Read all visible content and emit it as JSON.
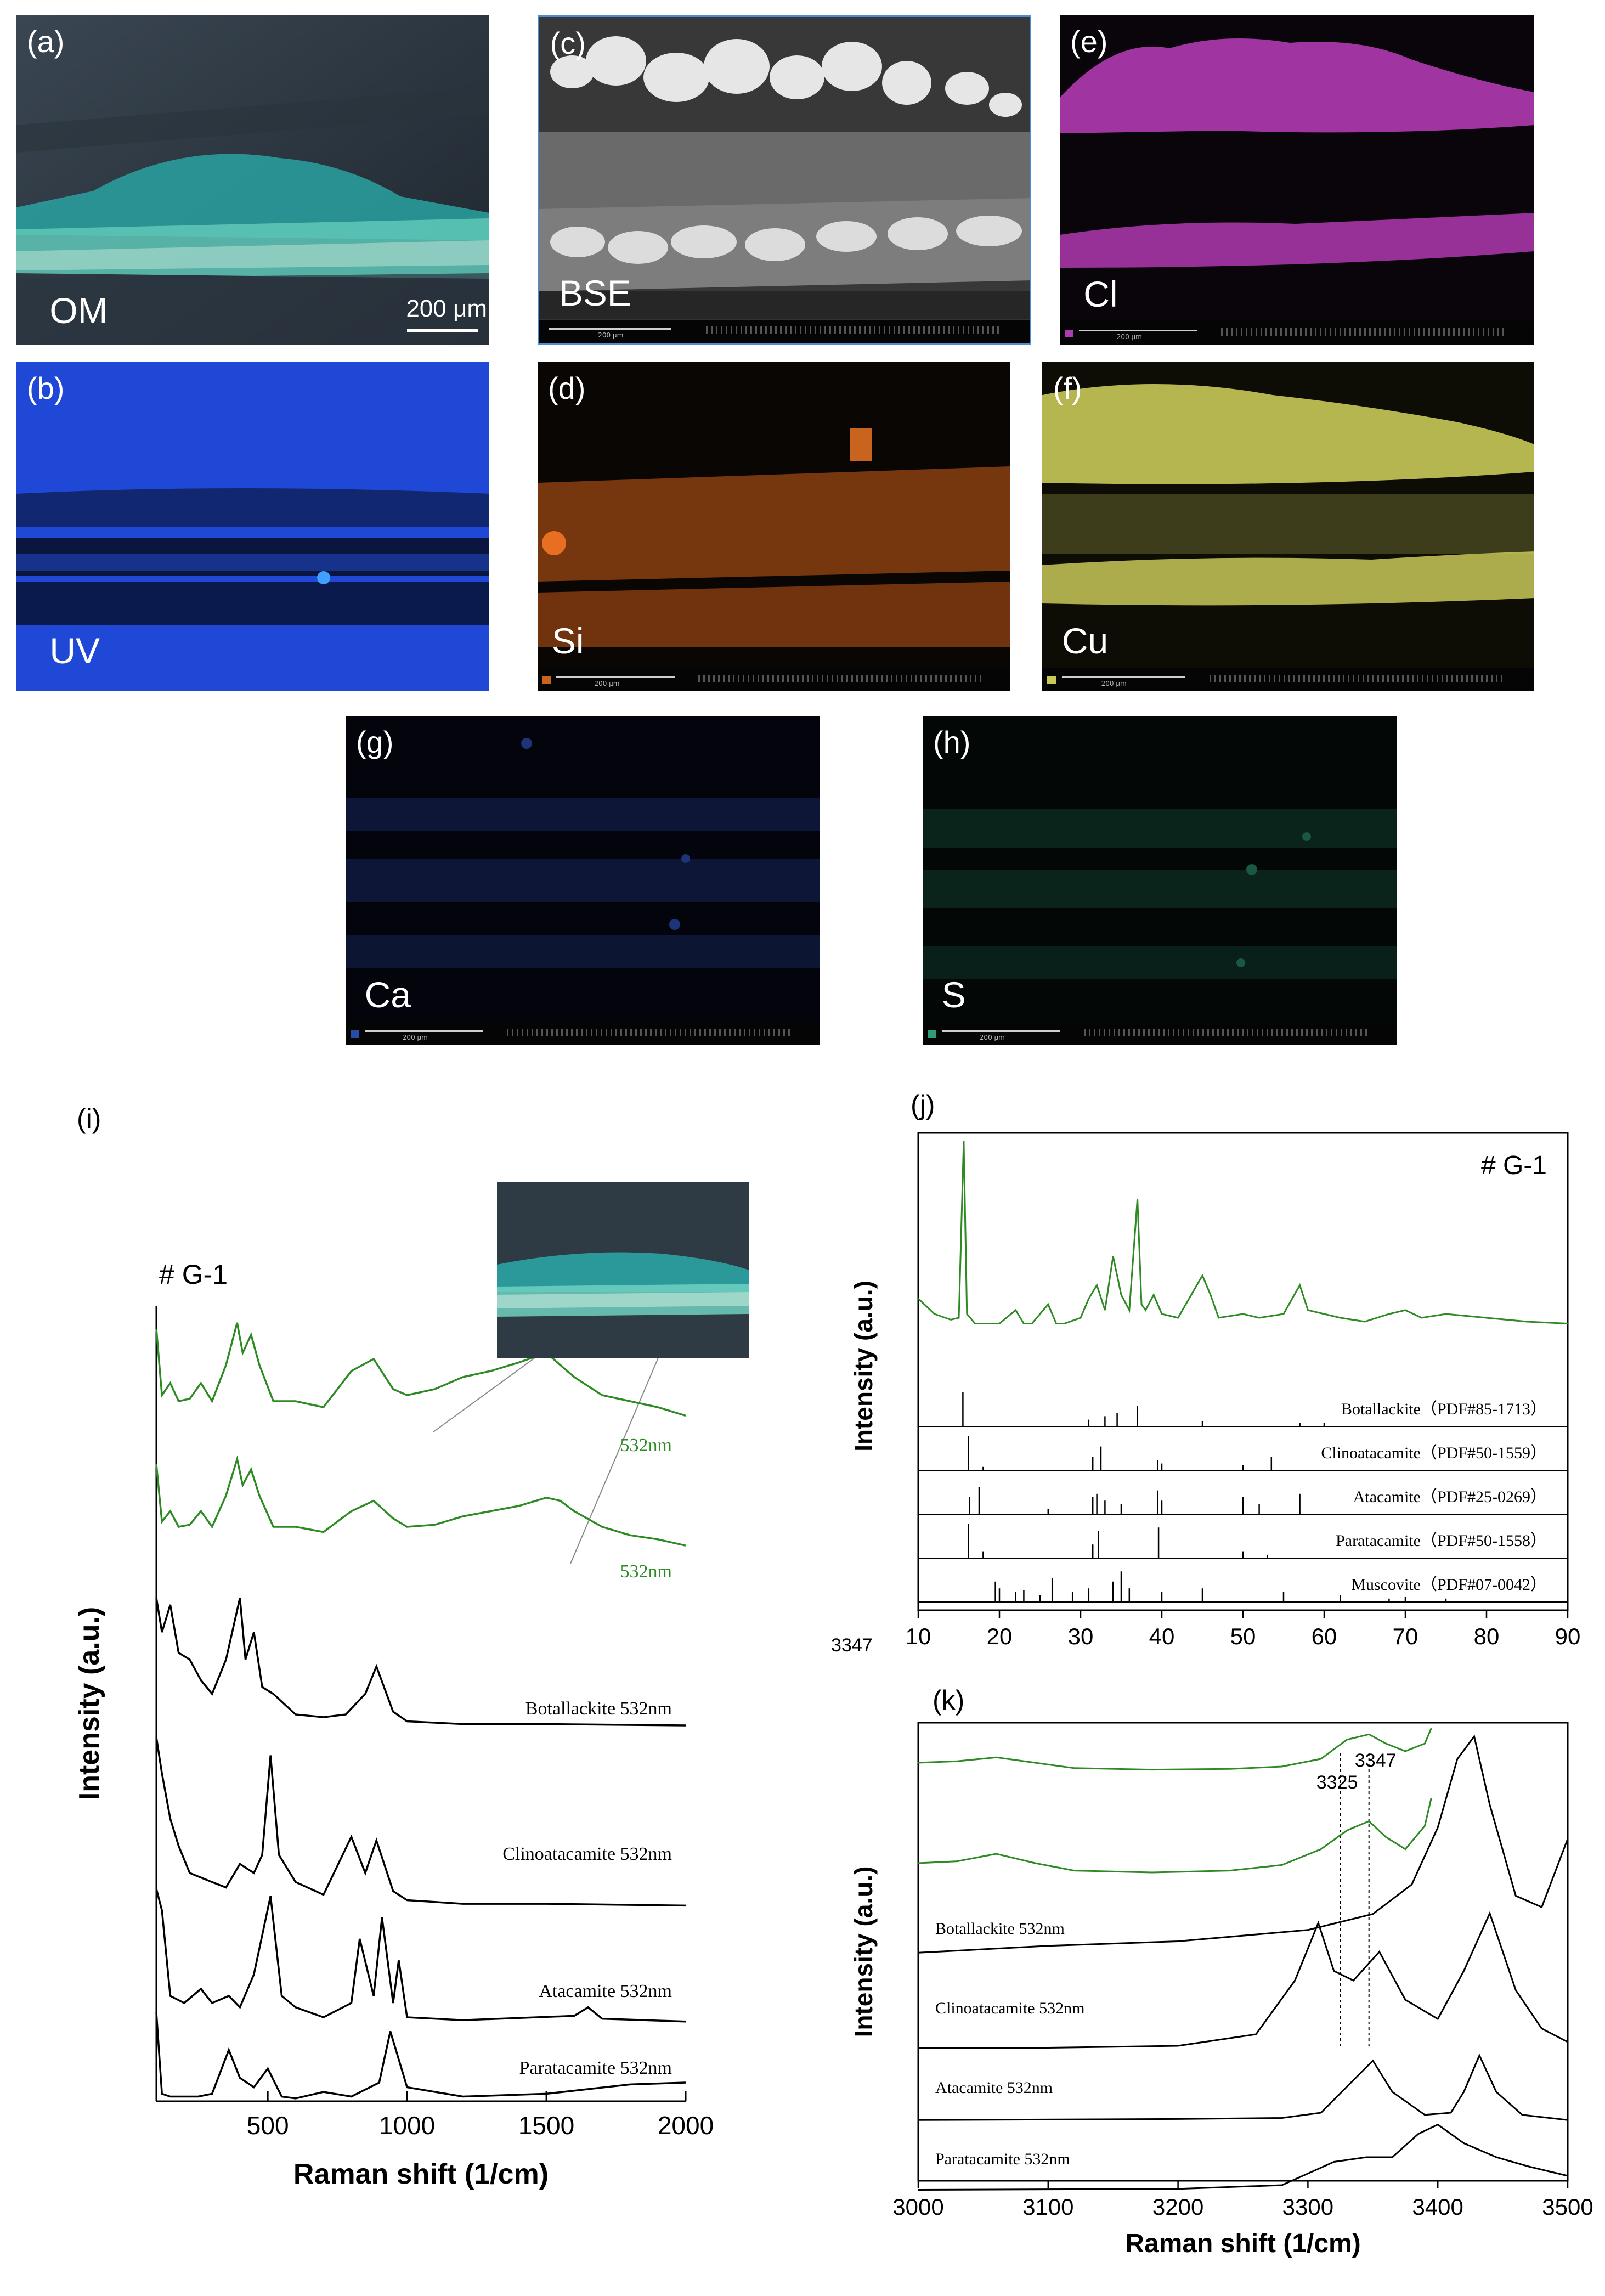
{
  "panels": {
    "a": {
      "label": "(a)",
      "text": "OM",
      "scale": "200 μm"
    },
    "b": {
      "label": "(b)",
      "text": "UV"
    },
    "c": {
      "label": "(c)",
      "text": "BSE"
    },
    "d": {
      "label": "(d)",
      "text": "Si"
    },
    "e": {
      "label": "(e)",
      "text": "Cl"
    },
    "f": {
      "label": "(f)",
      "text": "Cu"
    },
    "g": {
      "label": "(g)",
      "text": "Ca"
    },
    "h": {
      "label": "(h)",
      "text": "S"
    }
  },
  "sem_scale": "200 μm",
  "colors": {
    "Cl": "#b03ab0",
    "Cu": "#c9c95a",
    "Si": "#c9641e",
    "Ca": "#2a4aa8",
    "S": "#2f9c7c",
    "UV": "#1f48d6",
    "spectrum_green": "#2e8b24"
  },
  "stray_text": "3347",
  "chart_data": [
    {
      "panel": "(i)",
      "type": "line",
      "sample_label": "# G-1",
      "xlabel": "Raman shift (1/cm)",
      "ylabel": "Intensity (a.u.)",
      "xlim": [
        100,
        2000
      ],
      "xticks": [
        500,
        1000,
        1500,
        2000
      ],
      "series": [
        {
          "name": "532nm",
          "color": "#2e8b24",
          "x": [
            100,
            120,
            150,
            180,
            220,
            260,
            300,
            350,
            390,
            410,
            440,
            470,
            520,
            600,
            700,
            800,
            880,
            950,
            1000,
            1100,
            1200,
            1300,
            1400,
            1500,
            1550,
            1600,
            1700,
            1800,
            1900,
            2000
          ],
          "y": [
            0.9,
            0.35,
            0.45,
            0.3,
            0.32,
            0.45,
            0.3,
            0.6,
            0.95,
            0.7,
            0.85,
            0.6,
            0.3,
            0.3,
            0.25,
            0.55,
            0.65,
            0.4,
            0.35,
            0.4,
            0.5,
            0.55,
            0.62,
            0.7,
            0.6,
            0.5,
            0.35,
            0.3,
            0.25,
            0.18
          ]
        },
        {
          "name": "532nm",
          "color": "#2e8b24",
          "x": [
            100,
            120,
            150,
            180,
            220,
            260,
            300,
            350,
            390,
            410,
            440,
            470,
            520,
            600,
            700,
            800,
            880,
            950,
            1000,
            1100,
            1200,
            1300,
            1400,
            1500,
            1550,
            1600,
            1700,
            1800,
            1900,
            2000
          ],
          "y": [
            0.9,
            0.35,
            0.45,
            0.3,
            0.32,
            0.45,
            0.3,
            0.6,
            0.95,
            0.7,
            0.85,
            0.6,
            0.3,
            0.3,
            0.25,
            0.45,
            0.55,
            0.38,
            0.3,
            0.32,
            0.4,
            0.45,
            0.5,
            0.58,
            0.55,
            0.45,
            0.3,
            0.22,
            0.18,
            0.12
          ]
        },
        {
          "name": "Botallackite 532nm",
          "color": "#000000",
          "x": [
            100,
            120,
            150,
            180,
            220,
            260,
            300,
            350,
            400,
            420,
            450,
            480,
            520,
            600,
            700,
            780,
            850,
            890,
            950,
            1000,
            1200,
            1500,
            2000
          ],
          "y": [
            0.95,
            0.7,
            0.9,
            0.55,
            0.5,
            0.35,
            0.25,
            0.5,
            0.95,
            0.5,
            0.7,
            0.3,
            0.25,
            0.1,
            0.08,
            0.1,
            0.25,
            0.45,
            0.12,
            0.05,
            0.03,
            0.03,
            0.02
          ]
        },
        {
          "name": "Clinoatacamite 532nm",
          "color": "#000000",
          "x": [
            100,
            120,
            150,
            180,
            220,
            300,
            350,
            400,
            450,
            480,
            510,
            540,
            600,
            700,
            800,
            850,
            890,
            950,
            1000,
            1200,
            1500,
            2000
          ],
          "y": [
            0.95,
            0.75,
            0.5,
            0.35,
            0.2,
            0.15,
            0.12,
            0.25,
            0.2,
            0.3,
            0.85,
            0.3,
            0.15,
            0.08,
            0.4,
            0.2,
            0.38,
            0.1,
            0.05,
            0.03,
            0.03,
            0.02
          ]
        },
        {
          "name": "Atacamite 532nm",
          "color": "#000000",
          "x": [
            100,
            120,
            150,
            200,
            260,
            300,
            360,
            400,
            450,
            510,
            550,
            600,
            700,
            800,
            830,
            880,
            910,
            950,
            970,
            1000,
            1200,
            1600,
            1650,
            1700,
            2000
          ],
          "y": [
            0.95,
            0.8,
            0.2,
            0.15,
            0.25,
            0.15,
            0.2,
            0.12,
            0.35,
            0.9,
            0.2,
            0.12,
            0.05,
            0.15,
            0.6,
            0.2,
            0.75,
            0.15,
            0.45,
            0.05,
            0.03,
            0.06,
            0.12,
            0.04,
            0.02
          ]
        },
        {
          "name": "Paratacamite 532nm",
          "color": "#000000",
          "x": [
            100,
            120,
            150,
            250,
            300,
            360,
            400,
            450,
            500,
            550,
            600,
            700,
            800,
            900,
            940,
            1000,
            1200,
            1500,
            1800,
            2000
          ],
          "y": [
            0.95,
            0.08,
            0.05,
            0.05,
            0.08,
            0.55,
            0.25,
            0.15,
            0.35,
            0.05,
            0.03,
            0.1,
            0.05,
            0.2,
            0.75,
            0.15,
            0.05,
            0.08,
            0.18,
            0.2
          ]
        }
      ]
    },
    {
      "panel": "(j)",
      "type": "line",
      "sample_label": "# G-1",
      "ylabel": "Intensity (a.u.)",
      "xlim": [
        10,
        90
      ],
      "xticks": [
        10,
        20,
        30,
        40,
        50,
        60,
        70,
        80,
        90
      ],
      "pattern": {
        "color": "#2e8b24",
        "x": [
          10,
          12,
          14,
          15,
          15.6,
          16,
          17,
          20,
          22,
          23,
          24,
          26,
          27,
          28,
          30,
          31,
          32,
          33,
          34,
          35,
          36,
          37,
          37.5,
          38,
          39,
          40,
          42,
          45,
          46,
          47,
          50,
          52,
          55,
          57,
          58,
          60,
          62,
          65,
          68,
          70,
          72,
          75,
          80,
          85,
          90
        ],
        "y": [
          0.18,
          0.1,
          0.07,
          0.08,
          1.0,
          0.1,
          0.05,
          0.05,
          0.12,
          0.05,
          0.05,
          0.15,
          0.05,
          0.05,
          0.08,
          0.18,
          0.25,
          0.12,
          0.4,
          0.2,
          0.12,
          0.7,
          0.15,
          0.12,
          0.2,
          0.1,
          0.08,
          0.3,
          0.2,
          0.08,
          0.1,
          0.08,
          0.1,
          0.25,
          0.12,
          0.1,
          0.08,
          0.06,
          0.1,
          0.12,
          0.08,
          0.1,
          0.08,
          0.06,
          0.05
        ]
      },
      "references": [
        {
          "name": "Botallackite（PDF#85-1713）",
          "lines": [
            [
              15.5,
              1.0
            ],
            [
              31,
              0.2
            ],
            [
              33,
              0.3
            ],
            [
              34.5,
              0.4
            ],
            [
              37,
              0.6
            ],
            [
              45,
              0.15
            ],
            [
              57,
              0.1
            ],
            [
              60,
              0.1
            ]
          ]
        },
        {
          "name": "Clinoatacamite（PDF#50-1559）",
          "lines": [
            [
              16.2,
              1.0
            ],
            [
              18,
              0.1
            ],
            [
              31.5,
              0.4
            ],
            [
              32.5,
              0.7
            ],
            [
              39.5,
              0.3
            ],
            [
              40,
              0.2
            ],
            [
              50,
              0.15
            ],
            [
              53.5,
              0.4
            ]
          ]
        },
        {
          "name": "Atacamite（PDF#25-0269）",
          "lines": [
            [
              16.3,
              0.5
            ],
            [
              17.5,
              0.8
            ],
            [
              26,
              0.15
            ],
            [
              31.5,
              0.5
            ],
            [
              32,
              0.6
            ],
            [
              33,
              0.4
            ],
            [
              35,
              0.3
            ],
            [
              39.5,
              0.7
            ],
            [
              40,
              0.4
            ],
            [
              50,
              0.5
            ],
            [
              52,
              0.3
            ],
            [
              57,
              0.6
            ]
          ]
        },
        {
          "name": "Paratacamite（PDF#50-1558）",
          "lines": [
            [
              16.2,
              1.0
            ],
            [
              18,
              0.2
            ],
            [
              31.5,
              0.4
            ],
            [
              32.2,
              0.8
            ],
            [
              39.6,
              0.9
            ],
            [
              50,
              0.2
            ],
            [
              53,
              0.1
            ]
          ]
        },
        {
          "name": "Muscovite（PDF#07-0042）",
          "lines": [
            [
              19.5,
              0.6
            ],
            [
              20,
              0.4
            ],
            [
              22,
              0.3
            ],
            [
              23,
              0.35
            ],
            [
              25,
              0.2
            ],
            [
              26.5,
              0.7
            ],
            [
              29,
              0.3
            ],
            [
              31,
              0.4
            ],
            [
              34,
              0.6
            ],
            [
              35,
              0.9
            ],
            [
              36,
              0.4
            ],
            [
              40,
              0.3
            ],
            [
              45,
              0.4
            ],
            [
              55,
              0.3
            ],
            [
              62,
              0.2
            ],
            [
              68,
              0.1
            ],
            [
              70,
              0.15
            ],
            [
              75,
              0.1
            ]
          ]
        }
      ]
    },
    {
      "panel": "(k)",
      "type": "line",
      "xlabel": "Raman shift (1/cm)",
      "ylabel": "Intensity (a.u.)",
      "xlim": [
        3000,
        3500
      ],
      "xticks": [
        3000,
        3100,
        3200,
        3300,
        3400,
        3500
      ],
      "annotations": [
        "3325",
        "3347"
      ],
      "series": [
        {
          "name": "",
          "color": "#2e8b24",
          "x": [
            3000,
            3030,
            3060,
            3090,
            3120,
            3180,
            3240,
            3280,
            3310,
            3330,
            3347,
            3360,
            3375,
            3390,
            3395
          ],
          "y": [
            0.55,
            0.57,
            0.62,
            0.55,
            0.48,
            0.46,
            0.47,
            0.5,
            0.6,
            0.85,
            0.92,
            0.8,
            0.7,
            0.8,
            1.0
          ]
        },
        {
          "name": "",
          "color": "#2e8b24",
          "x": [
            3000,
            3030,
            3060,
            3090,
            3120,
            3180,
            3240,
            3280,
            3310,
            3330,
            3347,
            3360,
            3375,
            3390,
            3395
          ],
          "y": [
            0.2,
            0.22,
            0.3,
            0.2,
            0.12,
            0.1,
            0.12,
            0.18,
            0.35,
            0.55,
            0.65,
            0.48,
            0.35,
            0.6,
            0.9
          ]
        },
        {
          "name": "Botallackite 532nm",
          "color": "#000000",
          "x": [
            3000,
            3100,
            3200,
            3300,
            3350,
            3380,
            3400,
            3415,
            3428,
            3440,
            3460,
            3480,
            3500
          ],
          "y": [
            0.05,
            0.08,
            0.1,
            0.15,
            0.22,
            0.35,
            0.6,
            0.9,
            1.0,
            0.7,
            0.3,
            0.25,
            0.55
          ]
        },
        {
          "name": "Clinoatacamite 532nm",
          "color": "#000000",
          "x": [
            3000,
            3100,
            3200,
            3260,
            3290,
            3308,
            3320,
            3335,
            3355,
            3375,
            3400,
            3420,
            3440,
            3460,
            3480,
            3500
          ],
          "y": [
            0.05,
            0.05,
            0.06,
            0.12,
            0.4,
            0.7,
            0.45,
            0.4,
            0.55,
            0.3,
            0.2,
            0.45,
            0.75,
            0.35,
            0.15,
            0.08
          ]
        },
        {
          "name": "Atacamite 532nm",
          "color": "#000000",
          "x": [
            3000,
            3200,
            3280,
            3310,
            3330,
            3350,
            3365,
            3390,
            3410,
            3420,
            3432,
            3445,
            3465,
            3500
          ],
          "y": [
            0.03,
            0.04,
            0.05,
            0.1,
            0.35,
            0.6,
            0.3,
            0.08,
            0.1,
            0.3,
            0.65,
            0.3,
            0.08,
            0.03
          ]
        },
        {
          "name": "Paratacamite 532nm",
          "color": "#000000",
          "x": [
            3000,
            3200,
            3280,
            3320,
            3345,
            3365,
            3385,
            3400,
            3420,
            3445,
            3470,
            3500
          ],
          "y": [
            0.05,
            0.06,
            0.1,
            0.35,
            0.4,
            0.4,
            0.65,
            0.75,
            0.55,
            0.4,
            0.3,
            0.2
          ]
        }
      ]
    }
  ]
}
